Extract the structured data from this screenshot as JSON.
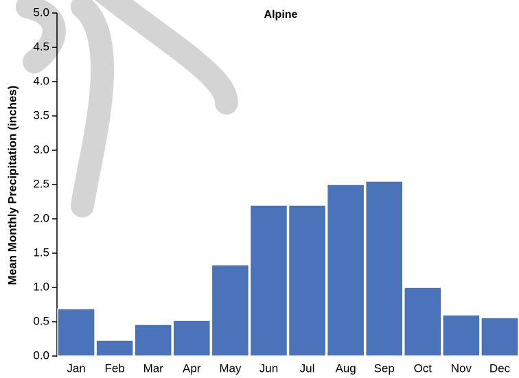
{
  "chart_data": {
    "type": "bar",
    "title": "Alpine",
    "y_label": "Mean Monthly Precipitation (inches)",
    "categories": [
      "Jan",
      "Feb",
      "Mar",
      "Apr",
      "May",
      "Jun",
      "Jul",
      "Aug",
      "Sep",
      "Oct",
      "Nov",
      "Dec"
    ],
    "values": [
      0.69,
      0.23,
      0.46,
      0.52,
      1.33,
      2.2,
      2.2,
      2.5,
      2.55,
      1.0,
      0.6,
      0.56
    ],
    "color": "#4a72b8",
    "ylim": [
      0,
      5
    ],
    "yticks": [
      {
        "value": 0,
        "label": "0.0"
      },
      0.5,
      {
        "value": 1,
        "label": "1.0"
      },
      1.5,
      {
        "value": 2,
        "label": "2.0"
      },
      2.5,
      {
        "value": 3,
        "label": "3.0"
      },
      3.5,
      {
        "value": 4,
        "label": "4.0"
      },
      4.5,
      {
        "value": 5,
        "label": "5.0"
      }
    ],
    "grid": false
  }
}
